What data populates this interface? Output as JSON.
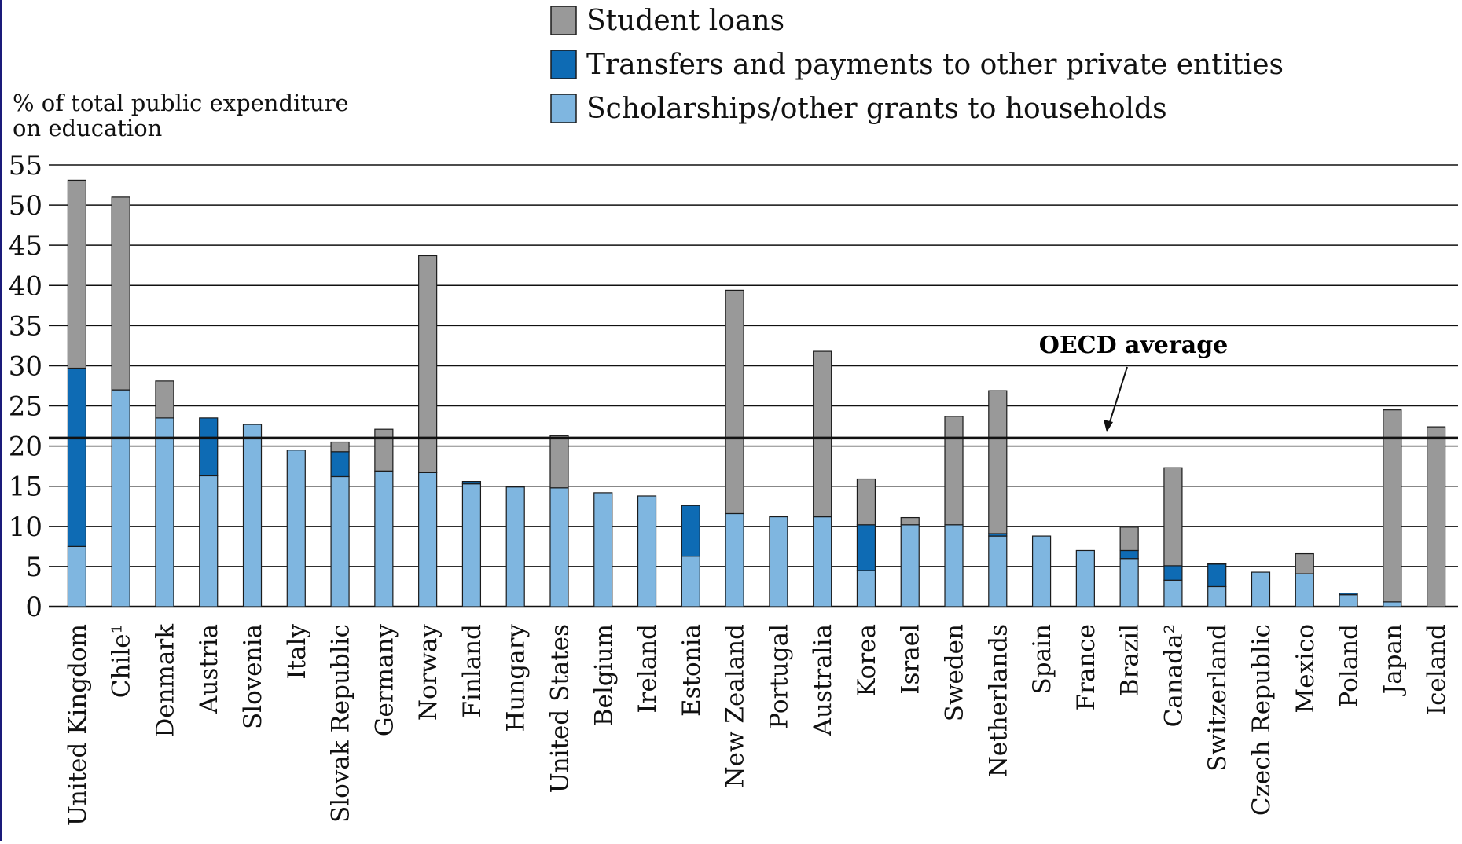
{
  "chart_data": {
    "type": "bar",
    "stacked": true,
    "ylabel": "% of total public expenditure\non education",
    "ylim": [
      0,
      55
    ],
    "yticks": [
      0,
      5,
      10,
      15,
      20,
      25,
      30,
      35,
      40,
      45,
      50,
      55
    ],
    "grid": true,
    "legend_position": "top-center",
    "categories": [
      "United Kingdom",
      "Chile¹",
      "Denmark",
      "Austria",
      "Slovenia",
      "Italy",
      "Slovak Republic",
      "Germany",
      "Norway",
      "Finland",
      "Hungary",
      "United States",
      "Belgium",
      "Ireland",
      "Estonia",
      "New Zealand",
      "Portugal",
      "Australia",
      "Korea",
      "Israel",
      "Sweden",
      "Netherlands",
      "Spain",
      "France",
      "Brazil",
      "Canada²",
      "Switzerland",
      "Czech Republic",
      "Mexico",
      "Poland",
      "Japan",
      "Iceland"
    ],
    "series": [
      {
        "name": "Scholarships/other grants to households",
        "color": "#7fb6e0",
        "values": [
          7.5,
          27.0,
          23.5,
          16.3,
          22.7,
          19.5,
          16.2,
          16.9,
          16.7,
          15.3,
          14.9,
          14.8,
          14.2,
          13.8,
          6.3,
          11.6,
          11.2,
          11.2,
          4.5,
          10.2,
          10.2,
          8.8,
          8.8,
          7.0,
          6.0,
          3.3,
          2.5,
          4.3,
          4.1,
          1.5,
          0.6,
          0
        ]
      },
      {
        "name": "Transfers and payments to other private entities",
        "color": "#0e6bb4",
        "values": [
          22.2,
          0,
          0,
          7.2,
          0,
          0,
          3.1,
          0,
          0,
          0.3,
          0,
          0,
          0,
          0,
          6.3,
          0,
          0,
          0,
          5.7,
          0,
          0,
          0.3,
          0,
          0,
          1.0,
          1.8,
          2.8,
          0,
          0,
          0.2,
          0,
          0
        ]
      },
      {
        "name": "Student loans",
        "color": "#999999",
        "values": [
          23.4,
          24.0,
          4.6,
          0,
          0,
          0,
          1.2,
          5.2,
          27.0,
          0,
          0,
          6.5,
          0,
          0,
          0,
          27.8,
          0,
          20.6,
          5.7,
          0.9,
          13.5,
          17.8,
          0,
          0,
          2.9,
          12.2,
          0.1,
          0,
          2.5,
          0,
          23.9,
          22.4
        ]
      }
    ],
    "reference_line": {
      "label": "OECD average",
      "value": 21.0
    }
  }
}
